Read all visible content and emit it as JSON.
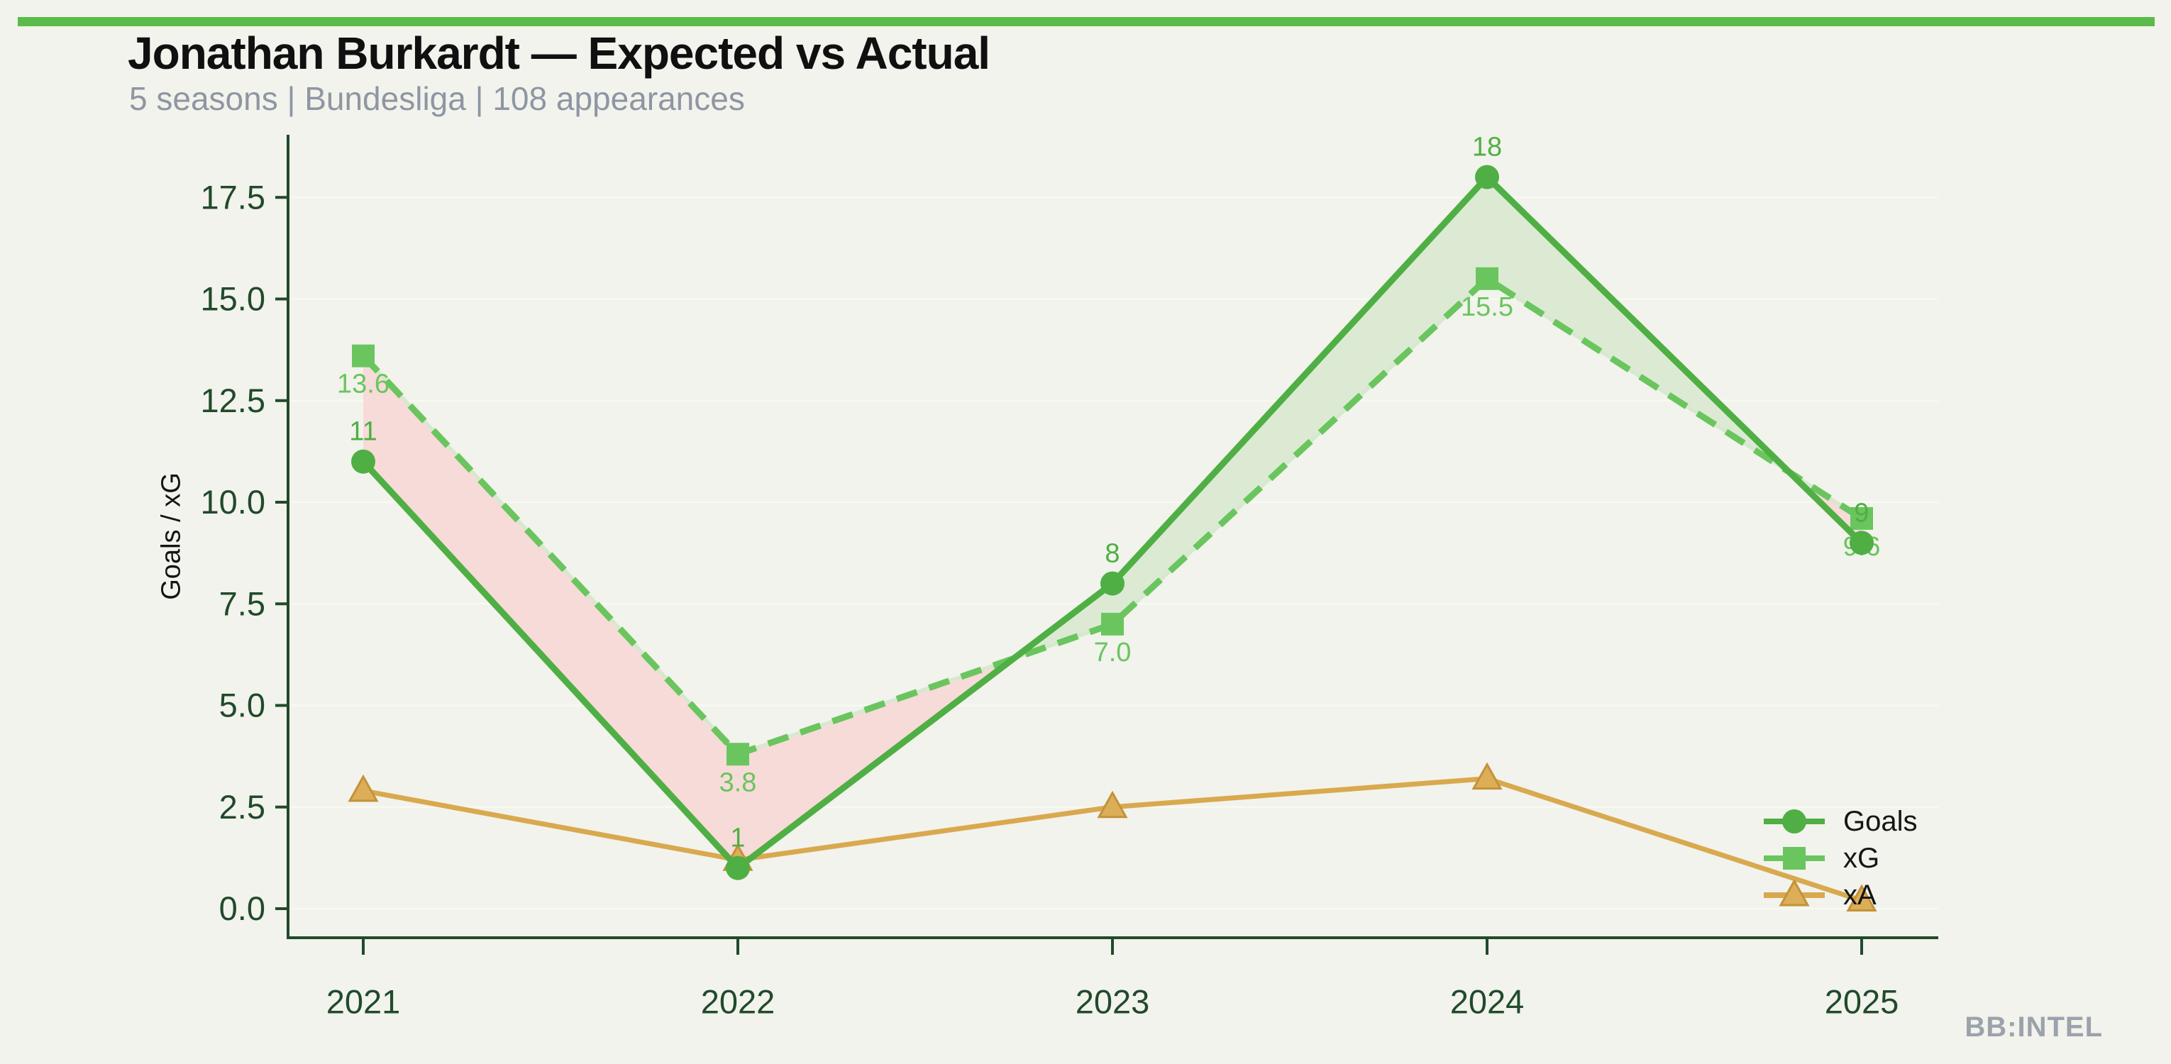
{
  "page": {
    "background": "#f2f3ec",
    "accent_bar_color": "#5abb4a",
    "watermark": "BB:INTEL"
  },
  "header": {
    "title": "Jonathan Burkardt — Expected vs Actual",
    "subtitle": "5 seasons | Bundesliga | 108 appearances"
  },
  "chart_data": {
    "type": "line",
    "title": "Jonathan Burkardt — Expected vs Actual",
    "subtitle": "5 seasons | Bundesliga | 108 appearances",
    "categories": [
      "2021",
      "2022",
      "2023",
      "2024",
      "2025"
    ],
    "series": [
      {
        "name": "Goals",
        "values": [
          11,
          1,
          8,
          18,
          9
        ],
        "point_labels": [
          "11",
          "1",
          "8",
          "18",
          "9"
        ],
        "label_position": "above",
        "color": "#4faf44",
        "line_style": "solid",
        "marker": "circle"
      },
      {
        "name": "xG",
        "values": [
          13.6,
          3.8,
          7.0,
          15.5,
          9.6
        ],
        "point_labels": [
          "13.6",
          "3.8",
          "7.0",
          "15.5",
          "9.6"
        ],
        "label_position": "below",
        "color": "#6ac55e",
        "line_style": "dashed",
        "marker": "square"
      },
      {
        "name": "xA",
        "values": [
          2.9,
          1.2,
          2.5,
          3.2,
          0.2
        ],
        "point_labels": null,
        "label_position": "none",
        "color": "#d9a94f",
        "line_style": "solid",
        "marker": "triangle",
        "marker_fill": "#dcae58",
        "marker_edge": "#c3923a"
      }
    ],
    "fill_between": {
      "upper_series": "Goals",
      "lower_series": "xG",
      "overperformance_color": "#dcead4",
      "underperformance_color": "#f7dbd8"
    },
    "xlabel": "",
    "ylabel": "Goals / xG",
    "yticks": [
      0.0,
      2.5,
      5.0,
      7.5,
      10.0,
      12.5,
      15.0,
      17.5
    ],
    "ytick_labels": [
      "0.0",
      "2.5",
      "5.0",
      "7.5",
      "10.0",
      "12.5",
      "15.0",
      "17.5"
    ],
    "ylim": [
      -0.72,
      19.05
    ],
    "grid": true,
    "grid_color": "#f8f9f1",
    "axis_color": "#214a2b",
    "legend_position": "lower right",
    "legend_entries": [
      "Goals",
      "xG",
      "xA"
    ]
  }
}
